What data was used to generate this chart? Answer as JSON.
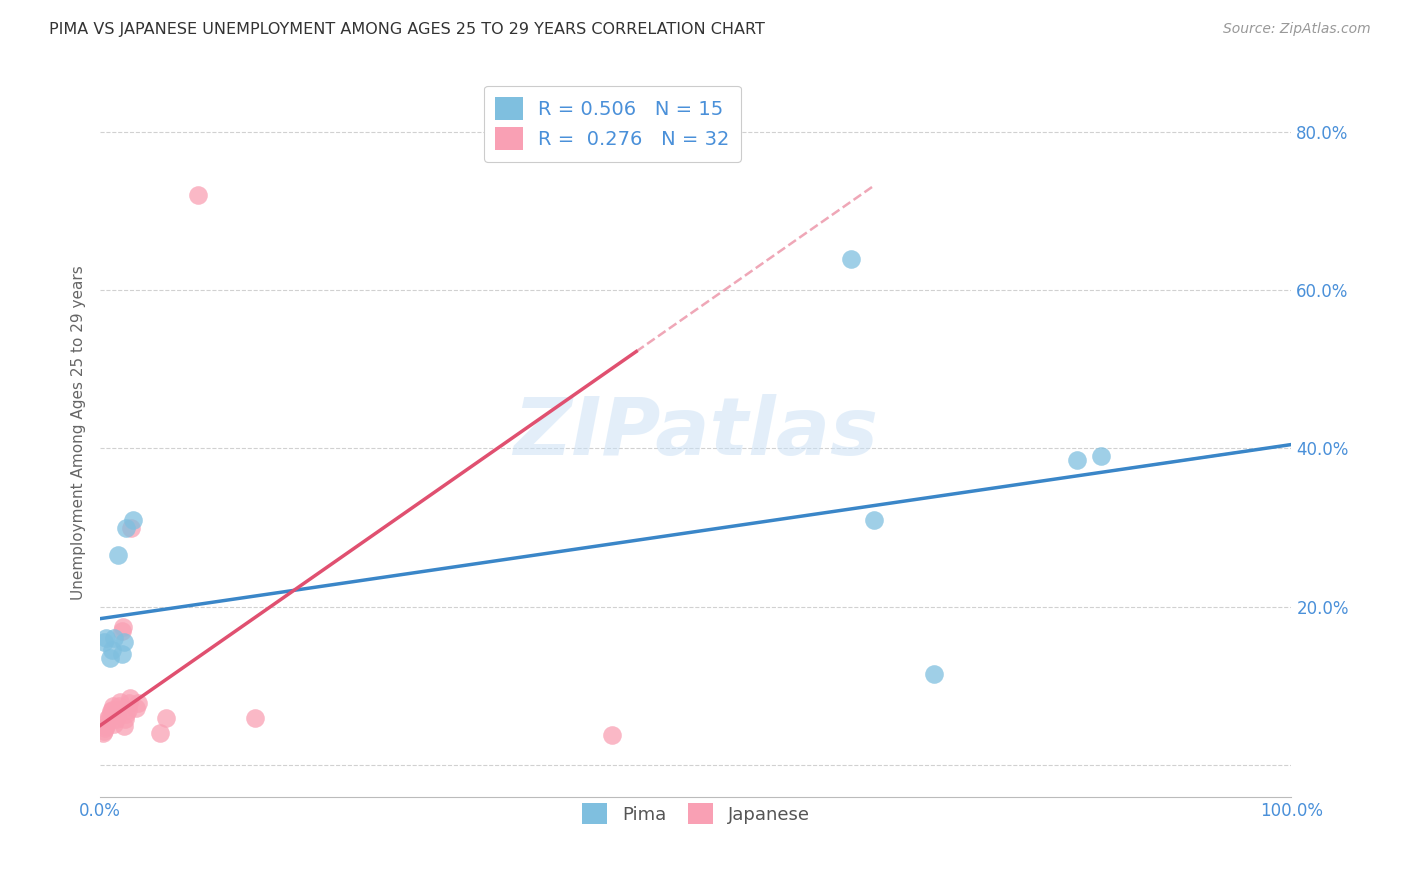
{
  "title": "PIMA VS JAPANESE UNEMPLOYMENT AMONG AGES 25 TO 29 YEARS CORRELATION CHART",
  "source": "Source: ZipAtlas.com",
  "xlabel": "",
  "ylabel": "Unemployment Among Ages 25 to 29 years",
  "xlim": [
    0.0,
    1.0
  ],
  "ylim": [
    -0.04,
    0.88
  ],
  "xticks": [
    0.0,
    0.2,
    0.4,
    0.6,
    0.8,
    1.0
  ],
  "xticklabels": [
    "0.0%",
    "",
    "",
    "",
    "",
    "100.0%"
  ],
  "yticks": [
    0.0,
    0.2,
    0.4,
    0.6,
    0.8
  ],
  "yticklabels": [
    "",
    "20.0%",
    "40.0%",
    "60.0%",
    "80.0%"
  ],
  "background_color": "#ffffff",
  "watermark_text": "ZIPatlas",
  "pima_color": "#7fbfdf",
  "japanese_color": "#f9a0b4",
  "pima_R": 0.506,
  "pima_N": 15,
  "japanese_R": 0.276,
  "japanese_N": 32,
  "pima_x": [
    0.003,
    0.005,
    0.008,
    0.01,
    0.012,
    0.015,
    0.018,
    0.02,
    0.022,
    0.028,
    0.63,
    0.65,
    0.7,
    0.82,
    0.84
  ],
  "pima_y": [
    0.155,
    0.16,
    0.135,
    0.145,
    0.16,
    0.265,
    0.14,
    0.155,
    0.3,
    0.31,
    0.64,
    0.31,
    0.115,
    0.385,
    0.39
  ],
  "japanese_x": [
    0.002,
    0.003,
    0.004,
    0.005,
    0.006,
    0.007,
    0.008,
    0.009,
    0.01,
    0.011,
    0.012,
    0.013,
    0.014,
    0.015,
    0.016,
    0.017,
    0.018,
    0.019,
    0.02,
    0.021,
    0.022,
    0.023,
    0.024,
    0.025,
    0.026,
    0.03,
    0.032,
    0.05,
    0.055,
    0.082,
    0.13,
    0.43
  ],
  "japanese_y": [
    0.04,
    0.043,
    0.047,
    0.05,
    0.055,
    0.06,
    0.063,
    0.068,
    0.07,
    0.075,
    0.052,
    0.058,
    0.065,
    0.07,
    0.075,
    0.08,
    0.17,
    0.175,
    0.05,
    0.058,
    0.065,
    0.07,
    0.078,
    0.085,
    0.3,
    0.072,
    0.078,
    0.04,
    0.06,
    0.72,
    0.06,
    0.038
  ],
  "pima_line_color": "#3a86c8",
  "japanese_line_color": "#e05070",
  "grid_color": "#cccccc",
  "tick_color": "#4a90d9",
  "ylabel_color": "#666666",
  "title_color": "#333333",
  "source_color": "#999999"
}
